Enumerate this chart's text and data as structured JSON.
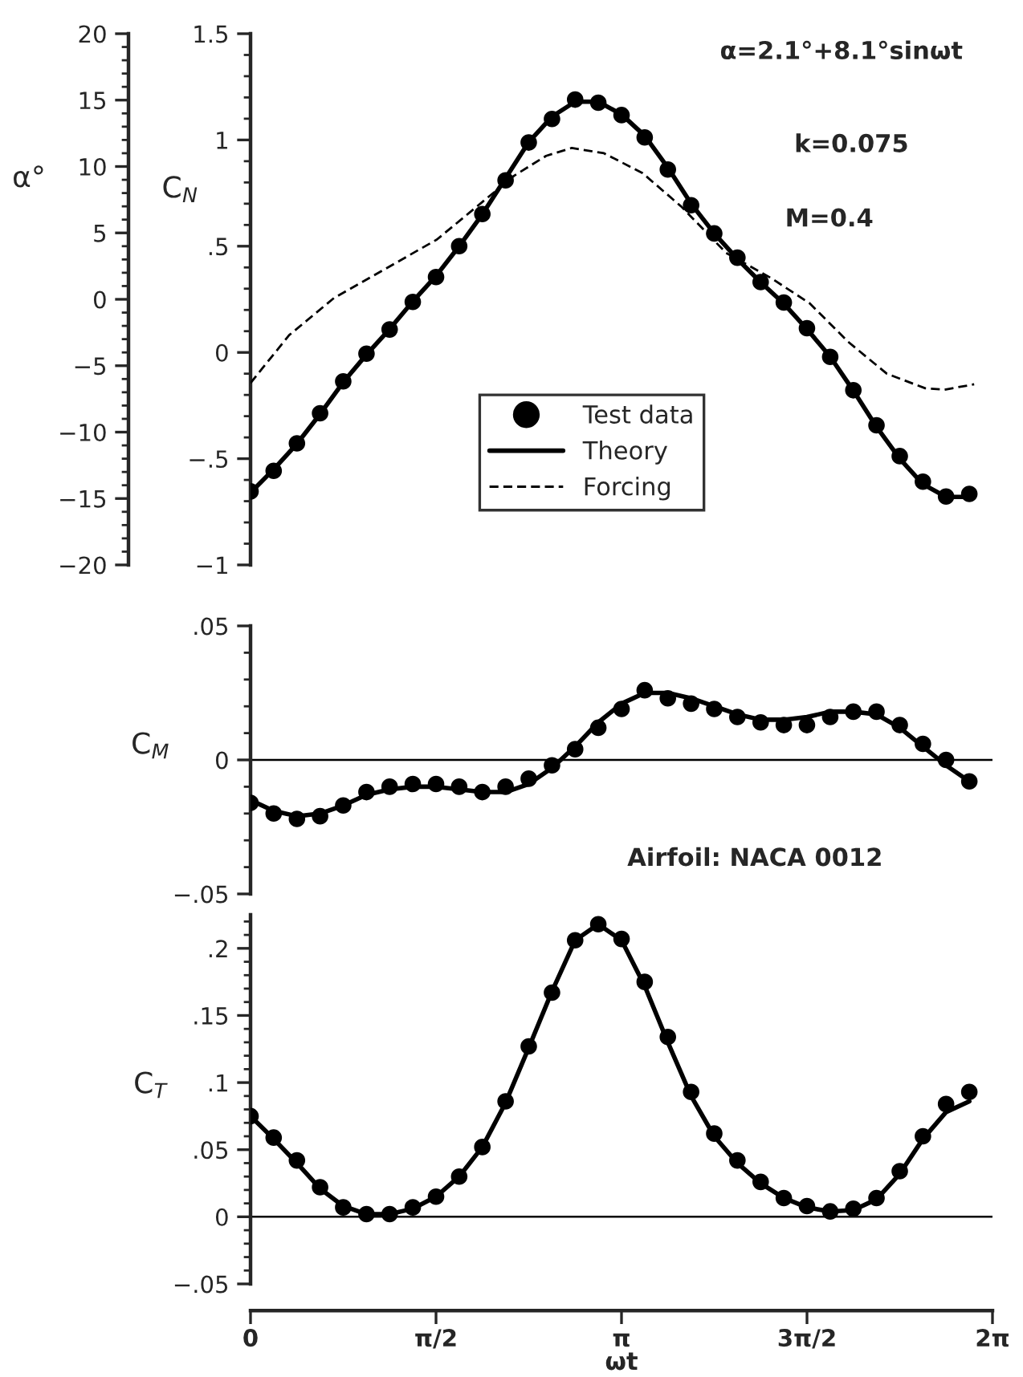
{
  "chart_data": [
    {
      "type": "line",
      "ylabel": "C$_{N}$",
      "y2label": "α°",
      "annotations": [
        "α=2.1°+8.1°sinωt",
        "k=0.075",
        "M=0.4"
      ],
      "x": [
        0,
        0.196,
        0.393,
        0.589,
        0.785,
        0.982,
        1.178,
        1.374,
        1.571,
        1.767,
        1.963,
        2.16,
        2.356,
        2.553,
        2.749,
        2.945,
        3.142,
        3.338,
        3.534,
        3.731,
        3.927,
        4.123,
        4.32,
        4.516,
        4.712,
        4.909,
        5.105,
        5.301,
        5.498,
        5.694,
        5.89,
        6.087
      ],
      "series": [
        {
          "name": "Test data",
          "type": "scatter",
          "marker": "circle",
          "color": "#000000",
          "values": [
            -0.654,
            -0.557,
            -0.428,
            -0.286,
            -0.136,
            -0.006,
            0.108,
            0.238,
            0.355,
            0.5,
            0.651,
            0.81,
            0.988,
            1.099,
            1.19,
            1.175,
            1.117,
            1.012,
            0.861,
            0.693,
            0.56,
            0.446,
            0.331,
            0.235,
            0.114,
            -0.021,
            -0.178,
            -0.343,
            -0.488,
            -0.608,
            -0.678,
            -0.666
          ]
        },
        {
          "name": "Theory",
          "type": "line",
          "line_style": "solid",
          "color": "#000000",
          "values": [
            -0.66,
            -0.55,
            -0.43,
            -0.29,
            -0.14,
            -0.01,
            0.11,
            0.24,
            0.36,
            0.5,
            0.65,
            0.82,
            0.99,
            1.11,
            1.18,
            1.18,
            1.12,
            1.02,
            0.87,
            0.7,
            0.56,
            0.44,
            0.33,
            0.23,
            0.11,
            -0.02,
            -0.18,
            -0.35,
            -0.5,
            -0.62,
            -0.68,
            -0.68
          ]
        },
        {
          "name": "Forcing",
          "type": "line",
          "line_style": "dashed",
          "axis": "y2",
          "color": "#000000",
          "x": [
            0,
            0.327,
            0.707,
            1.143,
            1.578,
            1.905,
            2.231,
            2.503,
            2.721,
            2.993,
            3.32,
            3.646,
            4.027,
            4.408,
            4.735,
            5.061,
            5.388,
            5.714,
            5.878,
            6.128
          ],
          "values": [
            -6.3,
            -2.7,
            0.1,
            2.3,
            4.5,
            6.9,
            9.3,
            10.8,
            11.4,
            11.0,
            9.5,
            7.0,
            3.5,
            1.6,
            -0.3,
            -3.2,
            -5.6,
            -6.7,
            -6.8,
            -6.4
          ]
        }
      ],
      "xlim": [
        0,
        6.2832
      ],
      "ylim": [
        -1,
        1.5
      ],
      "yticks": [
        {
          "value": -1,
          "label": "−1"
        },
        {
          "value": -0.5,
          "label": "−.5"
        },
        0,
        {
          "value": 0.5,
          "label": ".5"
        },
        1,
        1.5
      ],
      "y2lim": [
        -20,
        20
      ],
      "y2ticks": [
        {
          "value": -20,
          "label": "−20"
        },
        {
          "value": -15,
          "label": "−15"
        },
        {
          "value": -10,
          "label": "−10"
        },
        {
          "value": -5,
          "label": "−5"
        },
        0,
        5,
        10,
        15,
        20
      ],
      "tick_labels": "y",
      "legend": "bottom",
      "grid": false
    },
    {
      "type": "line",
      "ylabel": "C$_{M}$",
      "annotations": [
        "Airfoil: NACA 0012"
      ],
      "x": [
        0,
        0.196,
        0.393,
        0.589,
        0.785,
        0.982,
        1.178,
        1.374,
        1.571,
        1.767,
        1.963,
        2.16,
        2.356,
        2.553,
        2.749,
        2.945,
        3.142,
        3.338,
        3.534,
        3.731,
        3.927,
        4.123,
        4.32,
        4.516,
        4.712,
        4.909,
        5.105,
        5.301,
        5.498,
        5.694,
        5.89,
        6.087
      ],
      "series": [
        {
          "type": "scatter",
          "marker": "circle",
          "color": "#000000",
          "values": [
            -0.016,
            -0.02,
            -0.022,
            -0.021,
            -0.017,
            -0.012,
            -0.01,
            -0.009,
            -0.009,
            -0.01,
            -0.012,
            -0.01,
            -0.007,
            -0.002,
            0.004,
            0.012,
            0.019,
            0.026,
            0.023,
            0.021,
            0.019,
            0.016,
            0.014,
            0.013,
            0.013,
            0.016,
            0.018,
            0.018,
            0.013,
            0.006,
            0.0,
            -0.008
          ]
        },
        {
          "type": "line",
          "line_style": "solid",
          "color": "#000000",
          "values": [
            -0.015,
            -0.019,
            -0.021,
            -0.02,
            -0.017,
            -0.013,
            -0.011,
            -0.01,
            -0.01,
            -0.011,
            -0.012,
            -0.012,
            -0.009,
            -0.003,
            0.005,
            0.014,
            0.021,
            0.025,
            0.025,
            0.023,
            0.02,
            0.017,
            0.015,
            0.015,
            0.016,
            0.018,
            0.018,
            0.017,
            0.012,
            0.005,
            -0.002,
            -0.008
          ]
        }
      ],
      "xlim": [
        0,
        6.2832
      ],
      "ylim": [
        -0.05,
        0.05
      ],
      "yticks": [
        {
          "value": -0.05,
          "label": "−.05"
        },
        0,
        {
          "value": 0.05,
          "label": ".05"
        }
      ],
      "ref_lines": [
        {
          "axis": "y",
          "value": 0,
          "color": "#000000"
        }
      ],
      "tick_labels": "y",
      "grid": false
    },
    {
      "type": "line",
      "ylabel": "C$_{T}$",
      "xlabel": "ωt",
      "x": [
        0,
        0.196,
        0.393,
        0.589,
        0.785,
        0.982,
        1.178,
        1.374,
        1.571,
        1.767,
        1.963,
        2.16,
        2.356,
        2.553,
        2.749,
        2.945,
        3.142,
        3.338,
        3.534,
        3.731,
        3.927,
        4.123,
        4.32,
        4.516,
        4.712,
        4.909,
        5.105,
        5.301,
        5.498,
        5.694,
        5.89,
        6.087
      ],
      "series": [
        {
          "type": "scatter",
          "marker": "circle",
          "color": "#000000",
          "values": [
            0.075,
            0.059,
            0.042,
            0.022,
            0.007,
            0.002,
            0.002,
            0.007,
            0.015,
            0.03,
            0.052,
            0.086,
            0.127,
            0.167,
            0.206,
            0.218,
            0.207,
            0.175,
            0.134,
            0.093,
            0.062,
            0.042,
            0.026,
            0.014,
            0.008,
            0.004,
            0.006,
            0.014,
            0.034,
            0.06,
            0.084,
            0.093
          ]
        },
        {
          "type": "line",
          "line_style": "solid",
          "color": "#000000",
          "values": [
            0.075,
            0.058,
            0.04,
            0.021,
            0.008,
            0.002,
            0.002,
            0.006,
            0.015,
            0.03,
            0.052,
            0.085,
            0.126,
            0.168,
            0.206,
            0.218,
            0.206,
            0.172,
            0.13,
            0.09,
            0.06,
            0.04,
            0.025,
            0.014,
            0.007,
            0.004,
            0.005,
            0.013,
            0.032,
            0.058,
            0.078,
            0.086
          ]
        }
      ],
      "xlim": [
        0,
        6.2832
      ],
      "ylim": [
        -0.05,
        0.225
      ],
      "xticks": [
        0,
        {
          "value": 1.5708,
          "label": "π/2"
        },
        {
          "value": 3.1416,
          "label": "π"
        },
        {
          "value": 4.7124,
          "label": "3π/2"
        },
        {
          "value": 6.2832,
          "label": "2π"
        }
      ],
      "yticks": [
        {
          "value": -0.05,
          "label": "−.05"
        },
        0,
        {
          "value": 0.05,
          "label": ".05"
        },
        {
          "value": 0.1,
          "label": ".1"
        },
        {
          "value": 0.15,
          "label": ".15"
        },
        {
          "value": 0.2,
          "label": ".2"
        }
      ],
      "ref_lines": [
        {
          "axis": "y",
          "value": 0,
          "color": "#000000"
        }
      ],
      "grid": false
    }
  ]
}
